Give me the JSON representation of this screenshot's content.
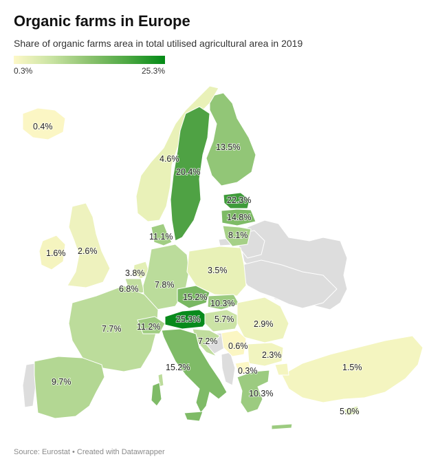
{
  "header": {
    "title": "Organic farms in Europe",
    "subtitle": "Share of organic farms area in total utilised agricultural area in 2019"
  },
  "legend": {
    "min_label": "0.3%",
    "max_label": "25.3%",
    "color_low": "#fdf8c8",
    "color_high": "#038a16"
  },
  "colors": {
    "no_data": "#dddddd",
    "border": "#ffffff"
  },
  "regions": [
    {
      "name": "Iceland",
      "value": 0.4,
      "label": "0.4%"
    },
    {
      "name": "Finland",
      "value": 13.5,
      "label": "13.5%"
    },
    {
      "name": "Norway",
      "value": 4.6,
      "label": "4.6%"
    },
    {
      "name": "Sweden",
      "value": 20.4,
      "label": "20.4%"
    },
    {
      "name": "Estonia",
      "value": 22.3,
      "label": "22.3%"
    },
    {
      "name": "Latvia",
      "value": 14.8,
      "label": "14.8%"
    },
    {
      "name": "Lithuania",
      "value": 8.1,
      "label": "8.1%"
    },
    {
      "name": "Denmark",
      "value": 11.1,
      "label": "11.1%"
    },
    {
      "name": "Ireland",
      "value": 1.6,
      "label": "1.6%"
    },
    {
      "name": "United Kingdom",
      "value": 2.6,
      "label": "2.6%"
    },
    {
      "name": "Netherlands",
      "value": 3.8,
      "label": "3.8%"
    },
    {
      "name": "Belgium",
      "value": 6.8,
      "label": "6.8%"
    },
    {
      "name": "Germany",
      "value": 7.8,
      "label": "7.8%"
    },
    {
      "name": "Poland",
      "value": 3.5,
      "label": "3.5%"
    },
    {
      "name": "Czechia",
      "value": 15.2,
      "label": "15.2%"
    },
    {
      "name": "Slovakia",
      "value": 10.3,
      "label": "10.3%"
    },
    {
      "name": "France",
      "value": 7.7,
      "label": "7.7%"
    },
    {
      "name": "Switzerland",
      "value": 11.2,
      "label": "11.2%"
    },
    {
      "name": "Austria",
      "value": 25.3,
      "label": "25.3%"
    },
    {
      "name": "Hungary",
      "value": 5.7,
      "label": "5.7%"
    },
    {
      "name": "Romania",
      "value": 2.9,
      "label": "2.9%"
    },
    {
      "name": "Croatia",
      "value": 7.2,
      "label": "7.2%"
    },
    {
      "name": "Serbia",
      "value": 0.6,
      "label": "0.6%"
    },
    {
      "name": "Bulgaria",
      "value": 2.3,
      "label": "2.3%"
    },
    {
      "name": "Italy",
      "value": 15.2,
      "label": "15.2%"
    },
    {
      "name": "North Macedonia",
      "value": 0.3,
      "label": "0.3%"
    },
    {
      "name": "Greece",
      "value": 10.3,
      "label": "10.3%"
    },
    {
      "name": "Spain",
      "value": 9.7,
      "label": "9.7%"
    },
    {
      "name": "Turkey",
      "value": 1.5,
      "label": "1.5%"
    },
    {
      "name": "Cyprus",
      "value": 5.0,
      "label": "5.0%"
    }
  ],
  "footer": {
    "source": "Source: Eurostat • Created with Datawrapper"
  }
}
